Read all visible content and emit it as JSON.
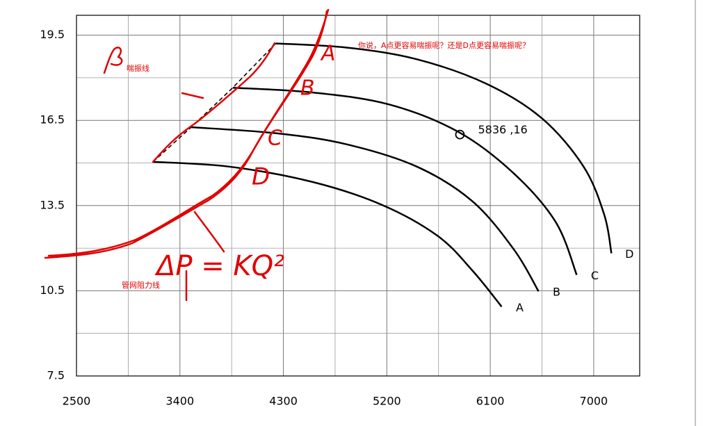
{
  "chart_data": {
    "type": "line",
    "xlim": [
      2500,
      7400
    ],
    "ylim": [
      7.5,
      20.2
    ],
    "xticks": [
      2500,
      3400,
      4300,
      5200,
      6100,
      7000
    ],
    "yticks": [
      7.5,
      10.5,
      13.5,
      16.5,
      19.5
    ],
    "xminorticks": [
      2950,
      3850,
      4750,
      5650,
      6550
    ],
    "yminorticks": [
      9,
      12,
      15,
      18
    ],
    "grid": true,
    "series": [
      {
        "name": "A",
        "color": "#000000",
        "x": [
          3165,
          3830,
          4555,
          5160,
          5643,
          5945,
          6199
        ],
        "values": [
          15.04,
          14.87,
          14.33,
          13.52,
          12.43,
          11.21,
          9.94
        ]
      },
      {
        "name": "B",
        "color": "#000000",
        "x": [
          3497,
          4253,
          4857,
          5462,
          5945,
          6308,
          6520
        ],
        "values": [
          16.26,
          16.04,
          15.65,
          14.87,
          13.65,
          11.94,
          10.48
        ]
      },
      {
        "name": "C",
        "color": "#000000",
        "x": [
          3860,
          4555,
          5220,
          5824,
          6308,
          6671,
          6852
        ],
        "values": [
          17.65,
          17.48,
          17.06,
          16.09,
          14.62,
          12.91,
          11.06
        ]
      },
      {
        "name": "D",
        "color": "#000000",
        "x": [
          4235,
          4857,
          5462,
          6066,
          6550,
          6912,
          7093,
          7154
        ],
        "values": [
          19.21,
          19.06,
          18.65,
          17.79,
          16.57,
          14.87,
          13.16,
          11.82
        ]
      }
    ],
    "point": {
      "x": 5836,
      "y": 16,
      "label": "5836 ,16"
    }
  },
  "annotations": {
    "question": "你说，A点更容易喘振呢？还是D点更容易喘振呢？",
    "surge_line": "喘振线",
    "resistance_line": "管网阻力线",
    "formula": "ΔP = KQ²",
    "handwritten_labels": [
      "A",
      "B",
      "C",
      "D"
    ]
  }
}
